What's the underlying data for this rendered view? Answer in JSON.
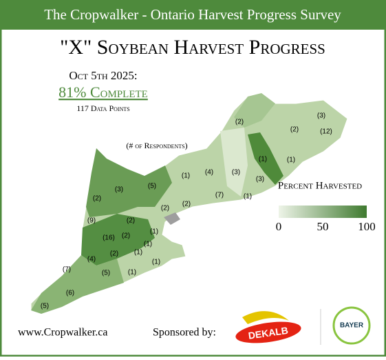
{
  "header": {
    "title": "The Cropwalker - Ontario Harvest Progress Survey"
  },
  "map": {
    "title": "\"X\" Soybean Harvest Progress",
    "date": "Oct 5th 2025:",
    "complete": "81% Complete",
    "data_points": "117 Data Points",
    "respondents_note": "(# of Respondents)",
    "regions": [
      "(2)",
      "(3)",
      "(2)",
      "(12)",
      "(1)",
      "(1)",
      "(3)",
      "(5)",
      "(1)",
      "(4)",
      "(3)",
      "(3)",
      "(2)",
      "(7)",
      "(1)",
      "(2)",
      "(2)",
      "(9)",
      "(2)",
      "(16)",
      "(2)",
      "(1)",
      "(1)",
      "(2)",
      "(1)",
      "(4)",
      "(1)",
      "(7)",
      "(5)",
      "(1)",
      "(6)",
      "(5)"
    ],
    "legend": {
      "title": "Percent Harvested",
      "ticks": [
        0,
        50,
        100
      ]
    }
  },
  "footer": {
    "website": "www.Cropwalker.ca",
    "sponsored": "Sponsored by:",
    "sponsor1": "DEKALB",
    "sponsor2": "BAYER"
  }
}
